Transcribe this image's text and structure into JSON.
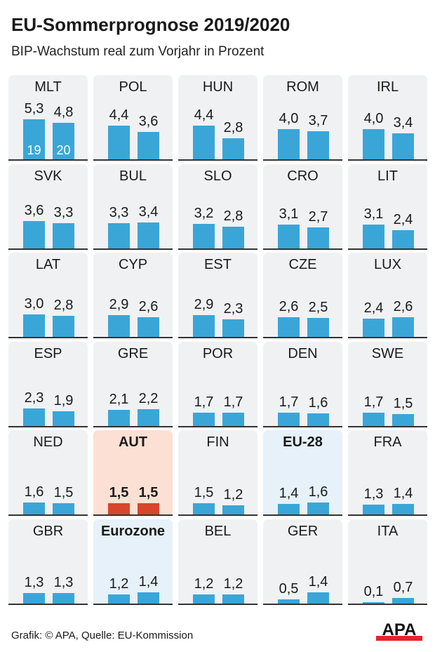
{
  "title": "EU-Sommerprognose 2019/2020",
  "subtitle": "BIP-Wachstum real zum Vorjahr in Prozent",
  "footer": "Grafik: © APA, Quelle: EU-Kommission",
  "logo_text": "APA",
  "colors": {
    "bar": "#3aa6d8",
    "highlight_bar": "#d9452b",
    "highlight_bg": "#fbe0d3",
    "aggregate_bg": "#e6f1f9",
    "panel_bg": "#f0f1f3"
  },
  "chart_data": {
    "type": "bar",
    "layout": "small-multiples",
    "series_labels": [
      "19",
      "20"
    ],
    "panels": [
      {
        "label": "MLT",
        "values": [
          5.3,
          4.8
        ],
        "display": [
          "5,3",
          "4,8"
        ]
      },
      {
        "label": "POL",
        "values": [
          4.4,
          3.6
        ],
        "display": [
          "4,4",
          "3,6"
        ]
      },
      {
        "label": "HUN",
        "values": [
          4.4,
          2.8
        ],
        "display": [
          "4,4",
          "2,8"
        ]
      },
      {
        "label": "ROM",
        "values": [
          4.0,
          3.7
        ],
        "display": [
          "4,0",
          "3,7"
        ]
      },
      {
        "label": "IRL",
        "values": [
          4.0,
          3.4
        ],
        "display": [
          "4,0",
          "3,4"
        ]
      },
      {
        "label": "SVK",
        "values": [
          3.6,
          3.3
        ],
        "display": [
          "3,6",
          "3,3"
        ]
      },
      {
        "label": "BUL",
        "values": [
          3.3,
          3.4
        ],
        "display": [
          "3,3",
          "3,4"
        ]
      },
      {
        "label": "SLO",
        "values": [
          3.2,
          2.8
        ],
        "display": [
          "3,2",
          "2,8"
        ]
      },
      {
        "label": "CRO",
        "values": [
          3.1,
          2.7
        ],
        "display": [
          "3,1",
          "2,7"
        ]
      },
      {
        "label": "LIT",
        "values": [
          3.1,
          2.4
        ],
        "display": [
          "3,1",
          "2,4"
        ]
      },
      {
        "label": "LAT",
        "values": [
          3.0,
          2.8
        ],
        "display": [
          "3,0",
          "2,8"
        ]
      },
      {
        "label": "CYP",
        "values": [
          2.9,
          2.6
        ],
        "display": [
          "2,9",
          "2,6"
        ]
      },
      {
        "label": "EST",
        "values": [
          2.9,
          2.3
        ],
        "display": [
          "2,9",
          "2,3"
        ]
      },
      {
        "label": "CZE",
        "values": [
          2.6,
          2.5
        ],
        "display": [
          "2,6",
          "2,5"
        ]
      },
      {
        "label": "LUX",
        "values": [
          2.4,
          2.6
        ],
        "display": [
          "2,4",
          "2,6"
        ]
      },
      {
        "label": "ESP",
        "values": [
          2.3,
          1.9
        ],
        "display": [
          "2,3",
          "1,9"
        ]
      },
      {
        "label": "GRE",
        "values": [
          2.1,
          2.2
        ],
        "display": [
          "2,1",
          "2,2"
        ]
      },
      {
        "label": "POR",
        "values": [
          1.7,
          1.7
        ],
        "display": [
          "1,7",
          "1,7"
        ]
      },
      {
        "label": "DEN",
        "values": [
          1.7,
          1.6
        ],
        "display": [
          "1,7",
          "1,6"
        ]
      },
      {
        "label": "SWE",
        "values": [
          1.7,
          1.5
        ],
        "display": [
          "1,7",
          "1,5"
        ]
      },
      {
        "label": "NED",
        "values": [
          1.6,
          1.5
        ],
        "display": [
          "1,6",
          "1,5"
        ]
      },
      {
        "label": "AUT",
        "values": [
          1.5,
          1.5
        ],
        "display": [
          "1,5",
          "1,5"
        ],
        "style": "highlight"
      },
      {
        "label": "FIN",
        "values": [
          1.5,
          1.2
        ],
        "display": [
          "1,5",
          "1,2"
        ]
      },
      {
        "label": "EU-28",
        "values": [
          1.4,
          1.6
        ],
        "display": [
          "1,4",
          "1,6"
        ],
        "style": "aggregate"
      },
      {
        "label": "FRA",
        "values": [
          1.3,
          1.4
        ],
        "display": [
          "1,3",
          "1,4"
        ]
      },
      {
        "label": "GBR",
        "values": [
          1.3,
          1.3
        ],
        "display": [
          "1,3",
          "1,3"
        ]
      },
      {
        "label": "Eurozone",
        "values": [
          1.2,
          1.4
        ],
        "display": [
          "1,2",
          "1,4"
        ],
        "style": "aggregate"
      },
      {
        "label": "BEL",
        "values": [
          1.2,
          1.2
        ],
        "display": [
          "1,2",
          "1,2"
        ]
      },
      {
        "label": "GER",
        "values": [
          0.5,
          1.4
        ],
        "display": [
          "0,5",
          "1,4"
        ]
      },
      {
        "label": "ITA",
        "values": [
          0.1,
          0.7
        ],
        "display": [
          "0,1",
          "0,7"
        ]
      }
    ]
  }
}
